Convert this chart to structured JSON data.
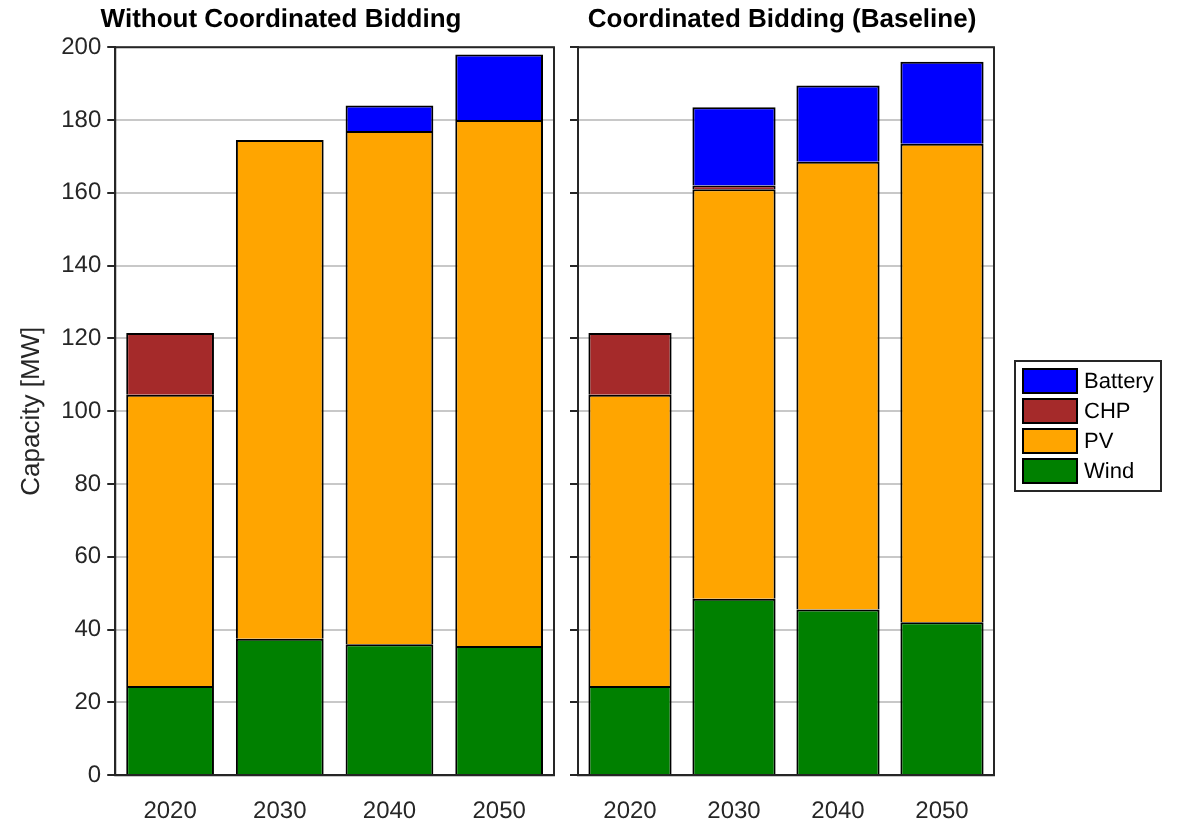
{
  "chart_data": [
    {
      "type": "bar",
      "title": "Without Coordinated Bidding",
      "ylabel": "Capacity [MW]",
      "categories": [
        "2020",
        "2030",
        "2040",
        "2050"
      ],
      "stacked": true,
      "ylim": [
        0,
        200
      ],
      "yticks": [
        0,
        20,
        40,
        60,
        80,
        100,
        120,
        140,
        160,
        180,
        200
      ],
      "grid": "y",
      "legend": false,
      "series": [
        {
          "color": "#008000",
          "values": [
            24.5,
            37.5,
            36,
            35.5
          ]
        },
        {
          "color": "#ffa500",
          "values": [
            80,
            137,
            141,
            144.5
          ]
        },
        {
          "color": "#a52a2a",
          "values": [
            17,
            0,
            0,
            0
          ]
        },
        {
          "color": "#0000ff",
          "values": [
            0,
            0,
            7,
            18
          ]
        }
      ]
    },
    {
      "type": "bar",
      "title": "Coordinated Bidding (Baseline)",
      "categories": [
        "2020",
        "2030",
        "2040",
        "2050"
      ],
      "stacked": true,
      "ylim": [
        0,
        200
      ],
      "yticks": [
        0,
        20,
        40,
        60,
        80,
        100,
        120,
        140,
        160,
        180,
        200
      ],
      "grid": "y",
      "legend": "right",
      "tick_labels": "x",
      "series": [
        {
          "name": "Wind",
          "color": "#008000",
          "values": [
            24.5,
            48.5,
            45.5,
            42
          ]
        },
        {
          "name": "PV",
          "color": "#ffa500",
          "values": [
            80,
            112.5,
            123,
            131.5
          ]
        },
        {
          "name": "CHP",
          "color": "#a52a2a",
          "values": [
            17,
            1,
            0,
            0
          ]
        },
        {
          "name": "Battery",
          "color": "#0000ff",
          "values": [
            0,
            21.5,
            21,
            22.5
          ]
        }
      ]
    }
  ]
}
